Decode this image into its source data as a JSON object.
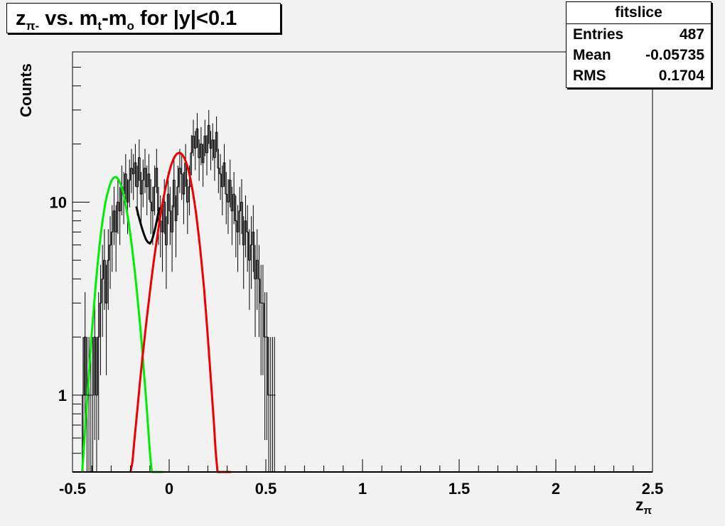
{
  "title": {
    "prefix": "z",
    "sub1": "π-",
    "mid": " vs. m",
    "sub2": "t",
    "mid2": "-m",
    "sub3": "o",
    "suffix": " for |y|<0.1"
  },
  "stats": {
    "name": "fitslice",
    "rows": [
      {
        "label": "Entries",
        "value": "487"
      },
      {
        "label": "Mean",
        "value": "-0.05735"
      },
      {
        "label": "RMS",
        "value": "0.1704"
      }
    ]
  },
  "colors": {
    "histogram": "#000000",
    "total_fit": "#000000",
    "fit_peak1": "#00ee00",
    "fit_peak2": "#ee0000",
    "frame_bg": "#f2f2f2"
  },
  "chart_data": {
    "type": "line",
    "xlabel_base": "z",
    "xlabel_sub": "π",
    "ylabel": "Counts",
    "xlim": [
      -0.5,
      2.5
    ],
    "ylim": [
      0.4,
      60
    ],
    "yscale": "log",
    "grid": false,
    "x_major_ticks": [
      -0.5,
      0,
      0.5,
      1,
      1.5,
      2,
      2.5
    ],
    "x_tick_labels": [
      "-0.5",
      "0",
      "0.5",
      "1",
      "1.5",
      "2",
      "2.5"
    ],
    "y_tick_values": [
      1,
      10
    ],
    "y_tick_labels": [
      "1",
      "10"
    ],
    "histogram": {
      "bin_width": 0.01,
      "x_start": -0.45,
      "counts": [
        1,
        2,
        1,
        1,
        1,
        1,
        2,
        1,
        2,
        3,
        4,
        5,
        3,
        5,
        6,
        7,
        9,
        7,
        10,
        9,
        12,
        11,
        14,
        10,
        13,
        15,
        14,
        16,
        12,
        17,
        11,
        13,
        15,
        12,
        14,
        10,
        9,
        12,
        15,
        9,
        8,
        7,
        10,
        6,
        11,
        9,
        7,
        13,
        8,
        12,
        15,
        14,
        11,
        16,
        10,
        12,
        18,
        22,
        19,
        24,
        17,
        20,
        16,
        22,
        18,
        25,
        19,
        21,
        17,
        23,
        15,
        14,
        12,
        16,
        11,
        10,
        13,
        9,
        11,
        8,
        7,
        9,
        10,
        6,
        8,
        7,
        5,
        6,
        7,
        4,
        5,
        4,
        3,
        3,
        2,
        2,
        1,
        1,
        1,
        1
      ]
    },
    "series": [
      {
        "role": "peak1",
        "x": [
          -0.45,
          -0.44,
          -0.43,
          -0.42,
          -0.41,
          -0.4,
          -0.39,
          -0.38,
          -0.37,
          -0.36,
          -0.35,
          -0.34,
          -0.33,
          -0.32,
          -0.31,
          -0.3,
          -0.29,
          -0.28,
          -0.27,
          -0.26,
          -0.25,
          -0.24,
          -0.23,
          -0.22,
          -0.21,
          -0.2,
          -0.19,
          -0.18,
          -0.17,
          -0.16,
          -0.15,
          -0.14,
          -0.13,
          -0.12,
          -0.11,
          -0.1,
          -0.09,
          -0.08,
          -0.07,
          -0.06,
          -0.05,
          -0.04,
          -0.03
        ],
        "y": [
          0.4,
          0.55,
          0.78,
          1.1,
          1.5,
          2.1,
          2.8,
          3.7,
          4.8,
          6.0,
          7.3,
          8.6,
          9.9,
          11.0,
          12.0,
          12.8,
          13.3,
          13.5,
          13.4,
          13.0,
          12.3,
          11.4,
          10.3,
          9.1,
          7.9,
          6.7,
          5.6,
          4.6,
          3.7,
          2.9,
          2.3,
          1.75,
          1.3,
          0.97,
          0.71,
          0.51,
          0.4,
          0.4,
          0.4,
          0.4,
          0.4,
          0.4,
          0.4
        ]
      },
      {
        "role": "peak2",
        "x": [
          -0.2,
          -0.19,
          -0.18,
          -0.17,
          -0.16,
          -0.15,
          -0.14,
          -0.13,
          -0.12,
          -0.11,
          -0.1,
          -0.09,
          -0.08,
          -0.07,
          -0.06,
          -0.05,
          -0.04,
          -0.03,
          -0.02,
          -0.01,
          0.0,
          0.01,
          0.02,
          0.03,
          0.04,
          0.05,
          0.06,
          0.07,
          0.08,
          0.09,
          0.1,
          0.11,
          0.12,
          0.13,
          0.14,
          0.15,
          0.16,
          0.17,
          0.18,
          0.19,
          0.2,
          0.21,
          0.22,
          0.23,
          0.24,
          0.25,
          0.26,
          0.27,
          0.28,
          0.29,
          0.3,
          0.31,
          0.32
        ],
        "y": [
          0.4,
          0.45,
          0.58,
          0.74,
          0.94,
          1.2,
          1.5,
          1.85,
          2.3,
          2.8,
          3.4,
          4.1,
          4.9,
          5.8,
          6.8,
          7.9,
          9.1,
          10.4,
          11.7,
          13.0,
          14.3,
          15.5,
          16.5,
          17.3,
          17.8,
          18.0,
          17.9,
          17.5,
          16.8,
          15.8,
          14.6,
          13.2,
          11.7,
          10.1,
          8.6,
          7.1,
          5.8,
          4.6,
          3.6,
          2.7,
          2.0,
          1.45,
          1.05,
          0.75,
          0.52,
          0.4,
          0.4,
          0.4,
          0.4,
          0.4,
          0.4,
          0.4,
          0.4
        ]
      },
      {
        "role": "total",
        "x": [
          -0.17,
          -0.16,
          -0.15,
          -0.14,
          -0.13,
          -0.12,
          -0.11,
          -0.1,
          -0.09,
          -0.08,
          -0.07,
          -0.06,
          -0.05
        ],
        "y": [
          9.5,
          8.6,
          7.9,
          7.3,
          6.8,
          6.4,
          6.2,
          6.1,
          6.3,
          6.8,
          7.5,
          8.4,
          9.4
        ]
      }
    ]
  }
}
